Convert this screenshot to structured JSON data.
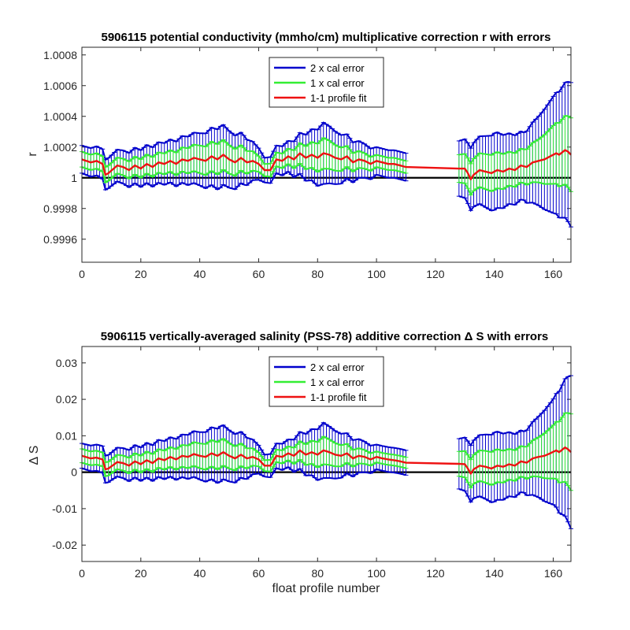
{
  "chart_data": [
    {
      "type": "line",
      "title": "5906115 potential conductivity (mmho/cm) multiplicative correction r with errors",
      "xlabel": "",
      "ylabel": "r",
      "xlim": [
        0,
        166
      ],
      "ylim": [
        0.99945,
        1.00085
      ],
      "x_ticks": [
        0,
        20,
        40,
        60,
        80,
        100,
        120,
        140,
        160
      ],
      "x_tick_labels": [
        "0",
        "20",
        "40",
        "60",
        "80",
        "100",
        "120",
        "140",
        "160"
      ],
      "y_ticks": [
        0.9996,
        0.9998,
        1.0,
        1.0002,
        1.0004,
        1.0006,
        1.0008
      ],
      "y_tick_labels": [
        "0.9996",
        "0.9998",
        "1",
        "1.0002",
        "1.0004",
        "1.0006",
        "1.0008"
      ],
      "reference_line": 1.0,
      "legend": {
        "position": "top-center",
        "entries": [
          {
            "label": "2 x cal error",
            "color": "#0000cc"
          },
          {
            "label": "1 x cal error",
            "color": "#33ee33"
          },
          {
            "label": "1-1 profile fit",
            "color": "#ee1111"
          }
        ]
      },
      "fit_knots": [
        [
          0,
          1.00012
        ],
        [
          3,
          1.0001
        ],
        [
          5,
          1.00011
        ],
        [
          7,
          1.00009
        ],
        [
          8,
          1.00002
        ],
        [
          9,
          1.00003
        ],
        [
          12,
          1.00008
        ],
        [
          14,
          1.00007
        ],
        [
          16,
          1.00005
        ],
        [
          18,
          1.00008
        ],
        [
          20,
          1.00006
        ],
        [
          22,
          1.00009
        ],
        [
          24,
          1.00007
        ],
        [
          26,
          1.0001
        ],
        [
          28,
          1.00009
        ],
        [
          30,
          1.00011
        ],
        [
          32,
          1.00009
        ],
        [
          34,
          1.00012
        ],
        [
          36,
          1.00011
        ],
        [
          38,
          1.00013
        ],
        [
          40,
          1.00012
        ],
        [
          42,
          1.00011
        ],
        [
          44,
          1.00014
        ],
        [
          46,
          1.00012
        ],
        [
          48,
          1.00015
        ],
        [
          50,
          1.00012
        ],
        [
          52,
          1.0001
        ],
        [
          54,
          1.00013
        ],
        [
          56,
          1.0001
        ],
        [
          58,
          1.00011
        ],
        [
          60,
          1.00009
        ],
        [
          62,
          1.00005
        ],
        [
          64,
          1.00005
        ],
        [
          66,
          1.00012
        ],
        [
          68,
          1.00011
        ],
        [
          70,
          1.00014
        ],
        [
          72,
          1.00012
        ],
        [
          74,
          1.00016
        ],
        [
          76,
          1.00013
        ],
        [
          78,
          1.00015
        ],
        [
          80,
          1.00013
        ],
        [
          82,
          1.00016
        ],
        [
          84,
          1.00015
        ],
        [
          86,
          1.00013
        ],
        [
          88,
          1.00012
        ],
        [
          90,
          1.00014
        ],
        [
          92,
          1.0001
        ],
        [
          94,
          1.00012
        ],
        [
          96,
          1.00011
        ],
        [
          98,
          1.00009
        ],
        [
          100,
          1.00011
        ],
        [
          102,
          1.0001
        ],
        [
          104,
          1.00009
        ],
        [
          106,
          1.00009
        ],
        [
          108,
          1.00008
        ],
        [
          110,
          1.00007
        ],
        [
          128,
          1.00006
        ],
        [
          130,
          1.00006
        ],
        [
          131,
          1.00003
        ],
        [
          132,
          0.99999
        ],
        [
          133,
          1.00002
        ],
        [
          135,
          1.00005
        ],
        [
          137,
          1.00004
        ],
        [
          139,
          1.00003
        ],
        [
          141,
          1.00005
        ],
        [
          143,
          1.00004
        ],
        [
          145,
          1.00006
        ],
        [
          147,
          1.00005
        ],
        [
          149,
          1.00008
        ],
        [
          151,
          1.00007
        ],
        [
          153,
          1.0001
        ],
        [
          155,
          1.00011
        ],
        [
          157,
          1.00012
        ],
        [
          159,
          1.00014
        ],
        [
          161,
          1.00016
        ],
        [
          162,
          1.00015
        ],
        [
          164,
          1.00018
        ],
        [
          165,
          1.00017
        ],
        [
          166,
          1.00015
        ]
      ],
      "err1_knots": [
        [
          0,
          5e-05
        ],
        [
          10,
          5e-05
        ],
        [
          20,
          6e-05
        ],
        [
          30,
          7e-05
        ],
        [
          40,
          9e-05
        ],
        [
          47,
          0.0001
        ],
        [
          55,
          8e-05
        ],
        [
          62,
          4e-05
        ],
        [
          70,
          5e-05
        ],
        [
          82,
          0.0001
        ],
        [
          92,
          6e-05
        ],
        [
          100,
          4e-05
        ],
        [
          110,
          4e-05
        ],
        [
          128,
          9e-05
        ],
        [
          135,
          0.00011
        ],
        [
          140,
          0.00012
        ],
        [
          145,
          0.00011
        ],
        [
          150,
          0.00011
        ],
        [
          155,
          0.00014
        ],
        [
          160,
          0.00019
        ],
        [
          166,
          0.00024
        ]
      ],
      "err2_knots": [
        [
          0,
          9e-05
        ],
        [
          10,
          0.0001
        ],
        [
          20,
          0.00012
        ],
        [
          30,
          0.00014
        ],
        [
          40,
          0.00017
        ],
        [
          47,
          0.0002
        ],
        [
          55,
          0.00016
        ],
        [
          62,
          8e-05
        ],
        [
          70,
          0.0001
        ],
        [
          82,
          0.0002
        ],
        [
          92,
          0.00013
        ],
        [
          100,
          9e-05
        ],
        [
          110,
          9e-05
        ],
        [
          128,
          0.00018
        ],
        [
          135,
          0.00022
        ],
        [
          140,
          0.00025
        ],
        [
          145,
          0.00023
        ],
        [
          150,
          0.00022
        ],
        [
          155,
          0.00029
        ],
        [
          160,
          0.00038
        ],
        [
          166,
          0.00047
        ]
      ]
    },
    {
      "type": "line",
      "title": "5906115 vertically-averaged salinity (PSS-78) additive correction Δ S with errors",
      "xlabel": "float profile number",
      "ylabel": "Δ S",
      "xlim": [
        0,
        166
      ],
      "ylim": [
        -0.0245,
        0.0345
      ],
      "x_ticks": [
        0,
        20,
        40,
        60,
        80,
        100,
        120,
        140,
        160
      ],
      "x_tick_labels": [
        "0",
        "20",
        "40",
        "60",
        "80",
        "100",
        "120",
        "140",
        "160"
      ],
      "y_ticks": [
        -0.02,
        -0.01,
        0,
        0.01,
        0.02,
        0.03
      ],
      "y_tick_labels": [
        "-0.02",
        "-0.01",
        "0",
        "0.01",
        "0.02",
        "0.03"
      ],
      "reference_line": 0,
      "legend": {
        "position": "top-center",
        "entries": [
          {
            "label": "2 x cal error",
            "color": "#0000cc"
          },
          {
            "label": "1 x cal error",
            "color": "#33ee33"
          },
          {
            "label": "1-1 profile fit",
            "color": "#ee1111"
          }
        ]
      },
      "fit_knots": [
        [
          0,
          0.0045
        ],
        [
          3,
          0.0038
        ],
        [
          5,
          0.004
        ],
        [
          7,
          0.0035
        ],
        [
          8,
          0.0008
        ],
        [
          9,
          0.001
        ],
        [
          12,
          0.0028
        ],
        [
          14,
          0.0025
        ],
        [
          16,
          0.0018
        ],
        [
          18,
          0.003
        ],
        [
          20,
          0.0022
        ],
        [
          22,
          0.0033
        ],
        [
          24,
          0.0025
        ],
        [
          26,
          0.0038
        ],
        [
          28,
          0.0033
        ],
        [
          30,
          0.0042
        ],
        [
          32,
          0.0035
        ],
        [
          34,
          0.0045
        ],
        [
          36,
          0.0042
        ],
        [
          38,
          0.005
        ],
        [
          40,
          0.0045
        ],
        [
          42,
          0.0042
        ],
        [
          44,
          0.0052
        ],
        [
          46,
          0.0045
        ],
        [
          48,
          0.0055
        ],
        [
          50,
          0.0045
        ],
        [
          52,
          0.0038
        ],
        [
          54,
          0.0048
        ],
        [
          56,
          0.0038
        ],
        [
          58,
          0.0042
        ],
        [
          60,
          0.0035
        ],
        [
          62,
          0.0018
        ],
        [
          64,
          0.0018
        ],
        [
          66,
          0.0045
        ],
        [
          68,
          0.0042
        ],
        [
          70,
          0.0052
        ],
        [
          72,
          0.0045
        ],
        [
          74,
          0.006
        ],
        [
          76,
          0.0048
        ],
        [
          78,
          0.0055
        ],
        [
          80,
          0.0048
        ],
        [
          82,
          0.006
        ],
        [
          84,
          0.0055
        ],
        [
          86,
          0.0048
        ],
        [
          88,
          0.0045
        ],
        [
          90,
          0.0052
        ],
        [
          92,
          0.0038
        ],
        [
          94,
          0.0045
        ],
        [
          96,
          0.0042
        ],
        [
          98,
          0.0035
        ],
        [
          100,
          0.0042
        ],
        [
          102,
          0.0038
        ],
        [
          104,
          0.0035
        ],
        [
          106,
          0.0033
        ],
        [
          108,
          0.003
        ],
        [
          110,
          0.0026
        ],
        [
          128,
          0.0023
        ],
        [
          130,
          0.0022
        ],
        [
          131,
          0.001
        ],
        [
          132,
          -0.0004
        ],
        [
          133,
          0.0008
        ],
        [
          135,
          0.0018
        ],
        [
          137,
          0.0015
        ],
        [
          139,
          0.001
        ],
        [
          141,
          0.0018
        ],
        [
          143,
          0.0015
        ],
        [
          145,
          0.0022
        ],
        [
          147,
          0.0018
        ],
        [
          149,
          0.003
        ],
        [
          151,
          0.0026
        ],
        [
          153,
          0.0038
        ],
        [
          155,
          0.0042
        ],
        [
          157,
          0.0045
        ],
        [
          159,
          0.0052
        ],
        [
          161,
          0.006
        ],
        [
          162,
          0.0055
        ],
        [
          164,
          0.0068
        ],
        [
          165,
          0.0063
        ],
        [
          166,
          0.0055
        ]
      ],
      "err1_knots": [
        [
          0,
          0.0019
        ],
        [
          10,
          0.0019
        ],
        [
          20,
          0.0023
        ],
        [
          30,
          0.0027
        ],
        [
          40,
          0.0034
        ],
        [
          47,
          0.0038
        ],
        [
          55,
          0.003
        ],
        [
          62,
          0.0015
        ],
        [
          70,
          0.0019
        ],
        [
          82,
          0.0038
        ],
        [
          92,
          0.0023
        ],
        [
          100,
          0.0015
        ],
        [
          110,
          0.0015
        ],
        [
          128,
          0.0034
        ],
        [
          135,
          0.0042
        ],
        [
          140,
          0.0046
        ],
        [
          145,
          0.0042
        ],
        [
          150,
          0.0042
        ],
        [
          155,
          0.0054
        ],
        [
          160,
          0.0073
        ],
        [
          166,
          0.0105
        ]
      ],
      "err2_knots": [
        [
          0,
          0.0034
        ],
        [
          10,
          0.0038
        ],
        [
          20,
          0.0046
        ],
        [
          30,
          0.0054
        ],
        [
          40,
          0.0065
        ],
        [
          47,
          0.0076
        ],
        [
          55,
          0.0061
        ],
        [
          62,
          0.003
        ],
        [
          70,
          0.0038
        ],
        [
          82,
          0.0076
        ],
        [
          92,
          0.005
        ],
        [
          100,
          0.0034
        ],
        [
          110,
          0.0034
        ],
        [
          128,
          0.0069
        ],
        [
          135,
          0.0084
        ],
        [
          140,
          0.0095
        ],
        [
          145,
          0.0088
        ],
        [
          150,
          0.0084
        ],
        [
          155,
          0.0111
        ],
        [
          160,
          0.0145
        ],
        [
          166,
          0.021
        ]
      ]
    }
  ]
}
